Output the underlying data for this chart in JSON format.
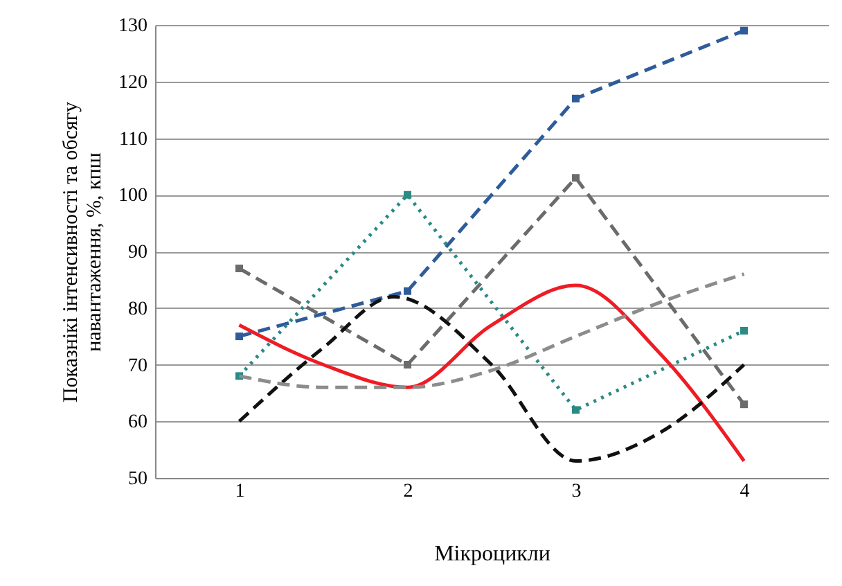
{
  "chart_data": {
    "type": "line",
    "xlabel": "Мікроцикли",
    "ylabel": "Показнікі інтенсивності та обсягу\nнавантаження, %, кпш",
    "x": [
      1,
      2,
      3,
      4
    ],
    "xlim": [
      0.5,
      4.5
    ],
    "xticks": [
      1,
      2,
      3,
      4
    ],
    "ylim": [
      50,
      130
    ],
    "yticks": [
      50,
      60,
      70,
      80,
      90,
      100,
      110,
      120,
      130
    ],
    "grid": "y",
    "series": [
      {
        "color": "#2e5c9a",
        "line_style": "dashed",
        "marker": "square",
        "values": [
          75,
          83,
          117,
          129
        ]
      },
      {
        "color": "#2a8a84",
        "line_style": "dotted",
        "marker": "square",
        "values": [
          68,
          100,
          62,
          76
        ]
      },
      {
        "color": "#6b6b6b",
        "line_style": "dashed",
        "marker": "square",
        "values": [
          87,
          70,
          103,
          63
        ]
      },
      {
        "color": "#ee1c25",
        "line_style": "solid",
        "marker": "none",
        "x": [
          1,
          1.5,
          2,
          2.5,
          3,
          3.5,
          4
        ],
        "values": [
          77,
          70,
          66,
          77,
          84,
          72,
          53
        ]
      },
      {
        "color": "#111111",
        "line_style": "dashed",
        "marker": "none",
        "x": [
          1,
          1.5,
          1.92,
          2.5,
          3,
          3.5,
          4
        ],
        "values": [
          60,
          73,
          82,
          70,
          53,
          58,
          70
        ]
      },
      {
        "color": "#8c8c8c",
        "line_style": "dashed",
        "marker": "none",
        "x": [
          1,
          1.5,
          2,
          2.5,
          3,
          3.5,
          4
        ],
        "values": [
          68,
          66,
          66,
          69,
          75,
          81,
          86
        ]
      }
    ]
  }
}
